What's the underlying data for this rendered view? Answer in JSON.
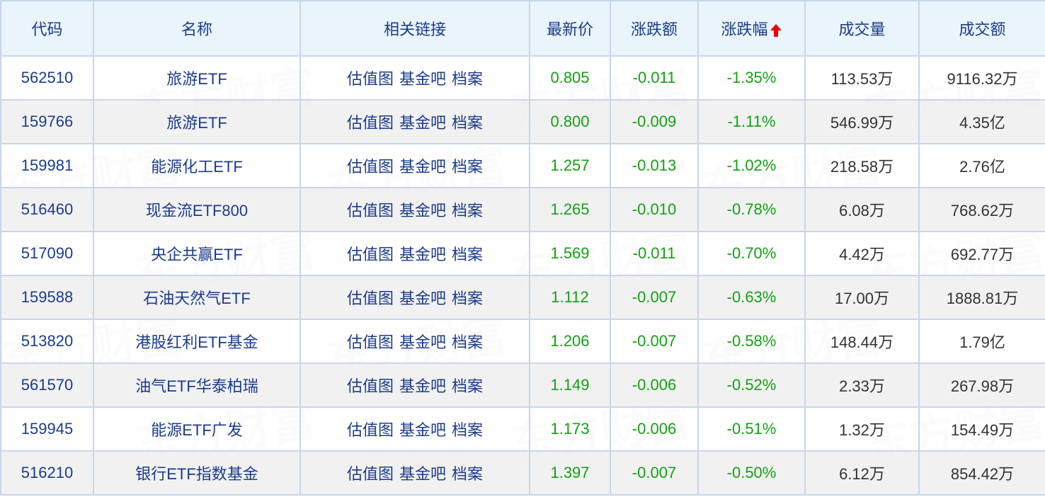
{
  "watermark": "东方财富",
  "colors": {
    "header_bg": "#e9f4fd",
    "header_text": "#1a3c8c",
    "link": "#1a3c8c",
    "down_green": "#14a014",
    "sort_arrow": "#e60000",
    "border": "#c6d7ea"
  },
  "columns": [
    "代码",
    "名称",
    "相关链接",
    "最新价",
    "涨跌额",
    "涨跌幅",
    "成交量",
    "成交额"
  ],
  "sort": {
    "column": "涨跌幅",
    "icon": "arrow-up-icon"
  },
  "link_labels": [
    "估值图",
    "基金吧",
    "档案"
  ],
  "rows": [
    {
      "code": "562510",
      "name": "旅游ETF",
      "price": "0.805",
      "change": "-0.011",
      "pct": "-1.35%",
      "volume": "113.53万",
      "amount": "9116.32万"
    },
    {
      "code": "159766",
      "name": "旅游ETF",
      "price": "0.800",
      "change": "-0.009",
      "pct": "-1.11%",
      "volume": "546.99万",
      "amount": "4.35亿"
    },
    {
      "code": "159981",
      "name": "能源化工ETF",
      "price": "1.257",
      "change": "-0.013",
      "pct": "-1.02%",
      "volume": "218.58万",
      "amount": "2.76亿"
    },
    {
      "code": "516460",
      "name": "现金流ETF800",
      "price": "1.265",
      "change": "-0.010",
      "pct": "-0.78%",
      "volume": "6.08万",
      "amount": "768.62万"
    },
    {
      "code": "517090",
      "name": "央企共赢ETF",
      "price": "1.569",
      "change": "-0.011",
      "pct": "-0.70%",
      "volume": "4.42万",
      "amount": "692.77万"
    },
    {
      "code": "159588",
      "name": "石油天然气ETF",
      "price": "1.112",
      "change": "-0.007",
      "pct": "-0.63%",
      "volume": "17.00万",
      "amount": "1888.81万"
    },
    {
      "code": "513820",
      "name": "港股红利ETF基金",
      "price": "1.206",
      "change": "-0.007",
      "pct": "-0.58%",
      "volume": "148.44万",
      "amount": "1.79亿"
    },
    {
      "code": "561570",
      "name": "油气ETF华泰柏瑞",
      "price": "1.149",
      "change": "-0.006",
      "pct": "-0.52%",
      "volume": "2.33万",
      "amount": "267.98万"
    },
    {
      "code": "159945",
      "name": "能源ETF广发",
      "price": "1.173",
      "change": "-0.006",
      "pct": "-0.51%",
      "volume": "1.32万",
      "amount": "154.49万"
    },
    {
      "code": "516210",
      "name": "银行ETF指数基金",
      "price": "1.397",
      "change": "-0.007",
      "pct": "-0.50%",
      "volume": "6.12万",
      "amount": "854.42万"
    }
  ]
}
